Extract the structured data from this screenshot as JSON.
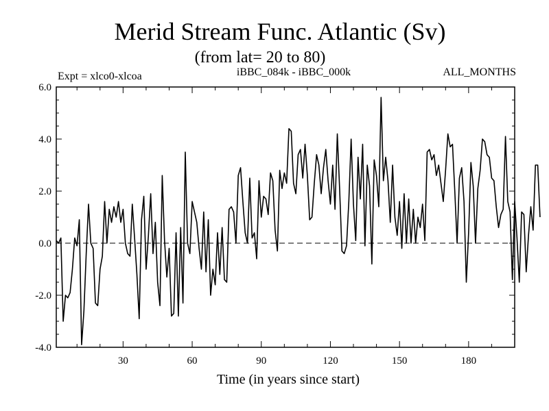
{
  "chart_data": {
    "type": "line",
    "title": "Merid Stream Func. Atlantic (Sv)",
    "subtitle": "(from lat= 20 to 80)",
    "experiment_label": "Expt = xlco0-xlcoa",
    "comparison_label": "iBBC_084k - iBBC_000k",
    "season_label": "ALL_MONTHS",
    "xlabel": "Time (in years since start)",
    "ylabel": "",
    "xlim": [
      1,
      200
    ],
    "ylim": [
      -4.0,
      6.0
    ],
    "x_ticks": [
      30,
      60,
      90,
      120,
      150,
      180
    ],
    "y_ticks": [
      "6.0",
      "4.0",
      "2.0",
      "0.0",
      "-2.0",
      "-4.0"
    ],
    "reference_line": 0.0,
    "x_start": 1,
    "x_step": 1,
    "series": [
      {
        "name": "Merid Stream Func. Atlantic",
        "values": [
          0.1,
          0.0,
          0.2,
          -3.0,
          -2.0,
          -2.1,
          -1.9,
          -1.0,
          0.2,
          -0.1,
          0.9,
          -3.9,
          -2.6,
          -0.4,
          1.5,
          0.0,
          -0.2,
          -2.3,
          -2.4,
          -1.0,
          -0.5,
          1.6,
          0.0,
          1.3,
          0.8,
          1.4,
          1.0,
          1.6,
          0.8,
          1.3,
          0.0,
          -0.4,
          -0.5,
          1.5,
          0.2,
          -1.2,
          -2.9,
          0.9,
          1.8,
          -1.0,
          0.3,
          1.9,
          -0.4,
          0.8,
          -1.5,
          -2.4,
          2.6,
          0.1,
          -1.3,
          -0.2,
          -2.8,
          -2.7,
          0.4,
          -2.8,
          0.6,
          -2.3,
          3.5,
          0.0,
          -0.4,
          1.6,
          1.2,
          0.8,
          -0.2,
          -1.0,
          1.2,
          -1.1,
          0.9,
          -2.0,
          -1.0,
          -1.6,
          0.4,
          -1.2,
          0.6,
          -1.4,
          -1.5,
          1.3,
          1.4,
          1.2,
          0.0,
          2.6,
          2.9,
          1.6,
          0.4,
          0.0,
          2.5,
          0.2,
          0.4,
          -0.6,
          2.4,
          1.0,
          1.8,
          1.7,
          1.1,
          2.7,
          2.4,
          0.5,
          -0.3,
          2.8,
          2.1,
          2.7,
          2.3,
          4.4,
          4.3,
          2.3,
          1.9,
          3.4,
          3.6,
          2.5,
          3.8,
          2.6,
          0.9,
          1.0,
          2.3,
          3.4,
          3.0,
          1.9,
          2.9,
          3.6,
          2.4,
          1.5,
          3.0,
          1.3,
          4.2,
          2.1,
          -0.3,
          -0.4,
          -0.1,
          1.6,
          4.0,
          1.5,
          0.1,
          3.3,
          1.7,
          3.8,
          -0.1,
          3.0,
          2.2,
          -0.8,
          3.2,
          2.6,
          1.4,
          5.6,
          2.4,
          3.3,
          2.4,
          0.8,
          3.0,
          1.0,
          0.3,
          1.6,
          -0.2,
          1.9,
          0.0,
          1.7,
          0.0,
          1.3,
          0.0,
          1.0,
          0.6,
          1.5,
          0.1,
          3.5,
          3.6,
          3.2,
          3.4,
          2.6,
          3.0,
          2.3,
          1.6,
          2.8,
          4.2,
          3.7,
          3.8,
          2.0,
          0.0,
          2.5,
          2.9,
          1.6,
          -1.5,
          0.4,
          3.1,
          2.2,
          0.0,
          2.1,
          2.8,
          4.0,
          3.9,
          3.4,
          3.3,
          2.5,
          2.4,
          1.4,
          0.6,
          1.1,
          1.3,
          4.1,
          1.6,
          1.2,
          -1.4,
          1.6,
          0.2,
          -1.5,
          1.2,
          1.1,
          -1.1,
          0.3,
          1.4,
          0.5,
          3.0,
          3.0,
          1.0
        ]
      }
    ]
  }
}
